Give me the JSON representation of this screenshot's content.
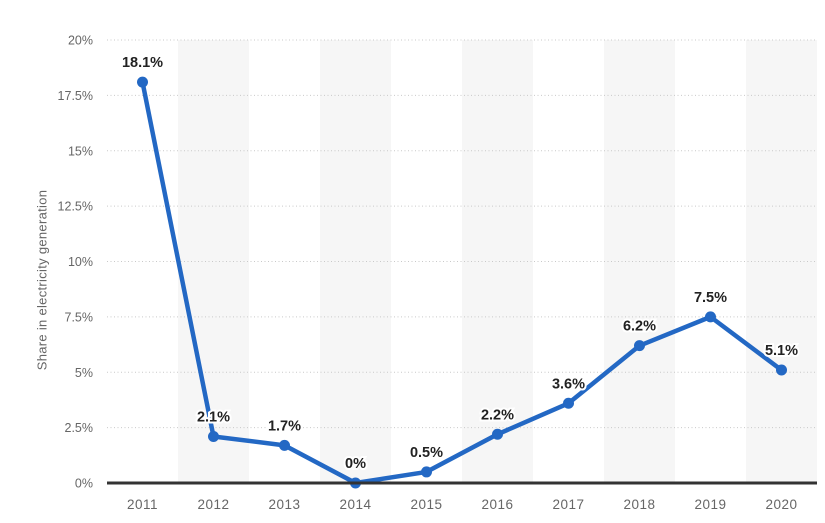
{
  "chart_data": {
    "type": "line",
    "title": "",
    "xlabel": "",
    "ylabel": "Share in electricity generation",
    "categories": [
      "2011",
      "2012",
      "2013",
      "2014",
      "2015",
      "2016",
      "2017",
      "2018",
      "2019",
      "2020"
    ],
    "values": [
      18.1,
      2.1,
      1.7,
      0,
      0.5,
      2.2,
      3.6,
      6.2,
      7.5,
      5.1
    ],
    "value_labels": [
      "18.1%",
      "2.1%",
      "1.7%",
      "0%",
      "0.5%",
      "2.2%",
      "3.6%",
      "6.2%",
      "7.5%",
      "5.1%"
    ],
    "ylim": [
      0,
      20
    ],
    "yticks": [
      {
        "value": 0,
        "label": "0%"
      },
      {
        "value": 2.5,
        "label": "2.5%"
      },
      {
        "value": 5,
        "label": "5%"
      },
      {
        "value": 7.5,
        "label": "7.5%"
      },
      {
        "value": 10,
        "label": "10%"
      },
      {
        "value": 12.5,
        "label": "12.5%"
      },
      {
        "value": 15,
        "label": "15%"
      },
      {
        "value": 17.5,
        "label": "17.5%"
      },
      {
        "value": 20,
        "label": "20%"
      }
    ],
    "grid": "horizontal-dotted",
    "legend": "none",
    "alternating_column_bands": "even-years-shaded",
    "colors": {
      "line": "#2368c4",
      "marker": "#2368c4",
      "band": "#f6f6f6",
      "grid": "#c9c9c9",
      "axis": "#333333",
      "tick_text": "#666666",
      "value_label_text": "#222222"
    }
  }
}
